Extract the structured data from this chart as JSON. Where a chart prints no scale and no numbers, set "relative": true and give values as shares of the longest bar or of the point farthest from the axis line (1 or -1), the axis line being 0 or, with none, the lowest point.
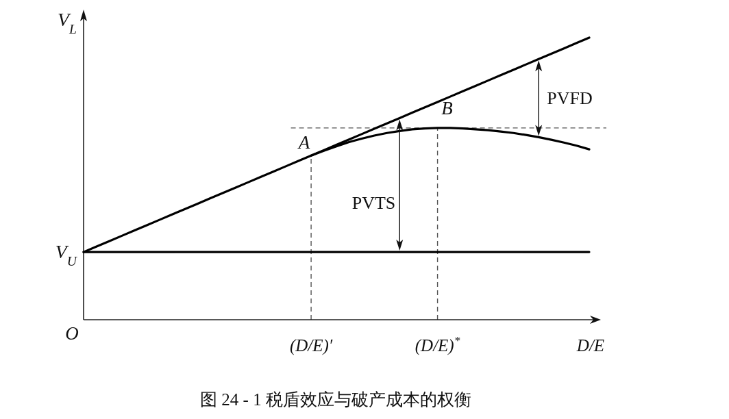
{
  "chart_data": {
    "type": "line",
    "title": "图 24 - 1 税盾效应与破产成本的权衡",
    "xlabel": "D/E",
    "ylabel": "V$_{L}$",
    "relative": true,
    "tick_labels": "x",
    "categories": [
      null,
      null,
      null,
      null,
      null,
      null,
      null,
      null,
      null,
      null,
      null,
      null,
      null,
      null,
      null,
      null,
      null,
      null,
      "(D/E)′",
      null,
      null,
      null,
      null,
      null,
      null,
      null,
      null,
      null,
      "(D/E)$^{*}$",
      null,
      null,
      null,
      null,
      null,
      null,
      null,
      null,
      null,
      null,
      null,
      null
    ],
    "series": [
      {
        "color": "#000000",
        "values": [
          0.24,
          0.259,
          0.278,
          0.297,
          0.316,
          0.335,
          0.354,
          0.373,
          0.392,
          0.411,
          0.43,
          0.449,
          0.468,
          0.487,
          0.506,
          0.525,
          0.544,
          0.563,
          0.582,
          0.601,
          0.62,
          0.639,
          0.658,
          0.677,
          0.696,
          0.715,
          0.734,
          0.753,
          0.772,
          0.791,
          0.81,
          0.829,
          0.848,
          0.867,
          0.886,
          0.905,
          0.924,
          0.943,
          0.962,
          0.981,
          1.0
        ]
      },
      {
        "color": "#000000",
        "values": [
          null,
          null,
          null,
          null,
          null,
          null,
          null,
          null,
          null,
          null,
          null,
          null,
          null,
          null,
          null,
          null,
          null,
          null,
          0.582,
          0.599,
          0.615,
          0.63,
          0.642,
          0.653,
          0.662,
          0.669,
          0.675,
          0.678,
          0.68,
          0.68,
          0.678,
          0.675,
          0.672,
          0.667,
          0.662,
          0.655,
          0.647,
          0.638,
          0.628,
          0.617,
          0.604
        ]
      },
      {
        "name": "V$_{U}$",
        "color": "#000000",
        "values": [
          0.24,
          0.24,
          0.24,
          0.24,
          0.24,
          0.24,
          0.24,
          0.24,
          0.24,
          0.24,
          0.24,
          0.24,
          0.24,
          0.24,
          0.24,
          0.24,
          0.24,
          0.24,
          0.24,
          0.24,
          0.24,
          0.24,
          0.24,
          0.24,
          0.24,
          0.24,
          0.24,
          0.24,
          0.24,
          0.24,
          0.24,
          0.24,
          0.24,
          0.24,
          0.24,
          0.24,
          0.24,
          0.24,
          0.24,
          0.24,
          0.24
        ]
      }
    ],
    "ref_lines": [
      {
        "axis": "y",
        "value": 0.68,
        "color": "#555555",
        "line_style": "dashed"
      },
      {
        "axis": "x",
        "value": "(D/E)′",
        "color": "#555555",
        "line_style": "dashed"
      },
      {
        "axis": "x",
        "value": "(D/E)$^{*}$",
        "color": "#555555",
        "line_style": "dashed"
      }
    ],
    "annotations": [
      {
        "text": "A",
        "x": "(D/E)′",
        "y": 0.582
      },
      {
        "text": "B",
        "x": "(D/E)$^{*}$",
        "y": 0.68
      },
      "PVTS",
      "PVFD",
      "O"
    ]
  }
}
